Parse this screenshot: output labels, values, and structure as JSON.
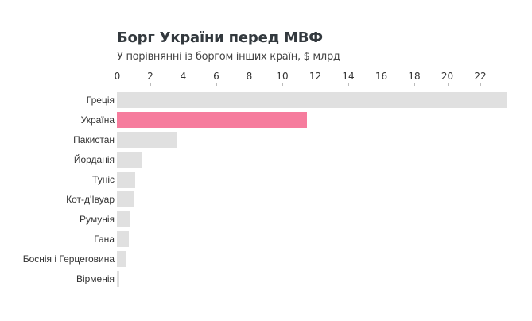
{
  "header": {
    "title": "Борг України перед МВФ",
    "subtitle": "У порівнянні із боргом інших країн, $ млрд"
  },
  "colors": {
    "bar_default": "#e0e0e0",
    "bar_highlight": "#f67c9d",
    "title": "#33393e"
  },
  "axis": {
    "ticks": [
      "0",
      "2",
      "4",
      "6",
      "8",
      "10",
      "12",
      "14",
      "16",
      "18",
      "20",
      "22"
    ]
  },
  "rows": [
    {
      "label": "Греція",
      "value": 23.6,
      "highlight": false
    },
    {
      "label": "Україна",
      "value": 11.5,
      "highlight": true
    },
    {
      "label": "Пакистан",
      "value": 3.6,
      "highlight": false
    },
    {
      "label": "Йорданія",
      "value": 1.5,
      "highlight": false
    },
    {
      "label": "Туніс",
      "value": 1.1,
      "highlight": false
    },
    {
      "label": "Кот-д'Івуар",
      "value": 1.0,
      "highlight": false
    },
    {
      "label": "Румунія",
      "value": 0.8,
      "highlight": false
    },
    {
      "label": "Гана",
      "value": 0.7,
      "highlight": false
    },
    {
      "label": "Боснія і Герцеговина",
      "value": 0.6,
      "highlight": false
    },
    {
      "label": "Вірменія",
      "value": 0.15,
      "highlight": false
    }
  ],
  "chart_data": {
    "type": "bar",
    "orientation": "horizontal",
    "title": "Борг України перед МВФ",
    "subtitle": "У порівнянні із боргом інших країн, $ млрд",
    "xlabel": "",
    "ylabel": "",
    "xlim": [
      0,
      23.6
    ],
    "xticks": [
      0,
      2,
      4,
      6,
      8,
      10,
      12,
      14,
      16,
      18,
      20,
      22
    ],
    "grid": false,
    "legend": null,
    "categories": [
      "Греція",
      "Україна",
      "Пакистан",
      "Йорданія",
      "Туніс",
      "Кот-д'Івуар",
      "Румунія",
      "Гана",
      "Боснія і Герцеговина",
      "Вірменія"
    ],
    "values": [
      23.6,
      11.5,
      3.6,
      1.5,
      1.1,
      1.0,
      0.8,
      0.7,
      0.6,
      0.15
    ],
    "highlighted_category": "Україна"
  }
}
